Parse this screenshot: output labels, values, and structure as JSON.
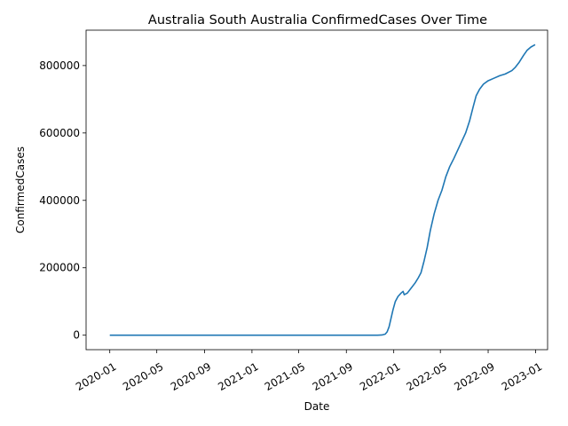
{
  "chart_data": {
    "type": "line",
    "title": "Australia South Australia ConfirmedCases Over Time",
    "xlabel": "Date",
    "ylabel": "ConfirmedCases",
    "x_ticks": [
      "2020-01",
      "2020-05",
      "2020-09",
      "2021-01",
      "2021-05",
      "2021-09",
      "2022-01",
      "2022-05",
      "2022-09",
      "2023-01"
    ],
    "y_ticks": [
      0,
      200000,
      400000,
      600000,
      800000
    ],
    "y_tick_labels": [
      "0",
      "200000",
      "400000",
      "600000",
      "800000"
    ],
    "xlim": [
      "2019-11-01",
      "2023-02-01"
    ],
    "ylim": [
      -43000,
      905000
    ],
    "grid": false,
    "legend": "none",
    "series": [
      {
        "color": "#1f77b4",
        "points": [
          [
            "2020-01-01",
            0
          ],
          [
            "2021-06-01",
            0
          ],
          [
            "2021-11-20",
            0
          ],
          [
            "2021-12-01",
            500
          ],
          [
            "2021-12-10",
            3000
          ],
          [
            "2021-12-15",
            10000
          ],
          [
            "2021-12-20",
            25000
          ],
          [
            "2021-12-25",
            50000
          ],
          [
            "2021-12-30",
            75000
          ],
          [
            "2022-01-05",
            100000
          ],
          [
            "2022-01-12",
            115000
          ],
          [
            "2022-01-20",
            125000
          ],
          [
            "2022-01-25",
            130000
          ],
          [
            "2022-01-28",
            120000
          ],
          [
            "2022-02-05",
            125000
          ],
          [
            "2022-02-15",
            140000
          ],
          [
            "2022-02-25",
            155000
          ],
          [
            "2022-03-05",
            170000
          ],
          [
            "2022-03-12",
            185000
          ],
          [
            "2022-03-20",
            220000
          ],
          [
            "2022-03-28",
            260000
          ],
          [
            "2022-04-05",
            310000
          ],
          [
            "2022-04-15",
            360000
          ],
          [
            "2022-04-25",
            400000
          ],
          [
            "2022-05-05",
            430000
          ],
          [
            "2022-05-15",
            470000
          ],
          [
            "2022-05-25",
            500000
          ],
          [
            "2022-06-05",
            525000
          ],
          [
            "2022-06-15",
            550000
          ],
          [
            "2022-06-25",
            575000
          ],
          [
            "2022-07-05",
            600000
          ],
          [
            "2022-07-15",
            635000
          ],
          [
            "2022-07-25",
            680000
          ],
          [
            "2022-08-01",
            710000
          ],
          [
            "2022-08-10",
            730000
          ],
          [
            "2022-08-20",
            745000
          ],
          [
            "2022-09-01",
            755000
          ],
          [
            "2022-09-15",
            762000
          ],
          [
            "2022-10-01",
            770000
          ],
          [
            "2022-10-15",
            775000
          ],
          [
            "2022-11-01",
            785000
          ],
          [
            "2022-11-10",
            795000
          ],
          [
            "2022-11-20",
            810000
          ],
          [
            "2022-12-01",
            830000
          ],
          [
            "2022-12-10",
            845000
          ],
          [
            "2022-12-20",
            855000
          ],
          [
            "2022-12-31",
            862000
          ]
        ]
      }
    ]
  }
}
